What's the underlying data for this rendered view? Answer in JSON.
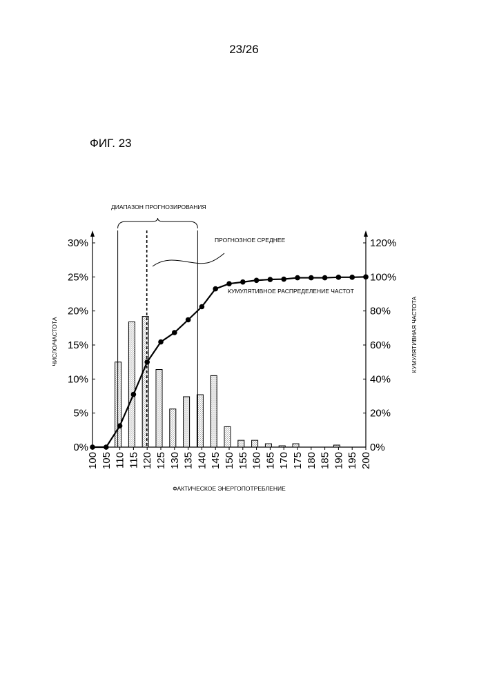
{
  "page": {
    "number": "23/26",
    "figure": "ФИГ. 23"
  },
  "chart_data": {
    "type": "bar",
    "categories": [
      "100",
      "105",
      "110",
      "115",
      "120",
      "125",
      "130",
      "135",
      "140",
      "145",
      "150",
      "155",
      "160",
      "165",
      "170",
      "175",
      "180",
      "185",
      "190",
      "195",
      "200"
    ],
    "series": [
      {
        "values": [
          0,
          0,
          12.5,
          18.4,
          19.2,
          11.4,
          5.6,
          7.4,
          7.7,
          10.5,
          3.0,
          1.0,
          1.0,
          0.5,
          0.2,
          0.5,
          0,
          0,
          0.3,
          0,
          0
        ]
      },
      {
        "name": "КУМУЛЯТИВНОЕ РАСПРЕДЕЛЕНИЕ ЧАСТОТ",
        "values": [
          0,
          0,
          12.5,
          31,
          50,
          61.8,
          67.3,
          74.8,
          82.5,
          93,
          96,
          97,
          98,
          98.5,
          98.7,
          99.5,
          99.5,
          99.5,
          99.8,
          99.8,
          100
        ]
      }
    ],
    "series_types": [
      "bar",
      "line"
    ],
    "xlabel": "ФАКТИЧЕСКОЕ ЭНЕРГОПОТРЕБЛЕНИЕ",
    "ylabel": "ЧИСЛО/ЧАСТОТА",
    "y2label": "КУМУЛЯТИВНАЯ ЧАСТОТА",
    "ylim": [
      0,
      30
    ],
    "y2lim": [
      0,
      120
    ],
    "yticks": [
      "0%",
      "5%",
      "10%",
      "15%",
      "20%",
      "25%",
      "30%"
    ],
    "y2ticks": [
      "0%",
      "20%",
      "40%",
      "60%",
      "80%",
      "100%",
      "120%"
    ],
    "annotations": {
      "range": "ДИАПАЗОН ПРОГНОЗИРОВАНИЯ",
      "mean": "ПРОГНОЗНОЕ СРЕДНЕЕ",
      "cumulative": "КУМУЛЯТИВНОЕ РАСПРЕДЕЛЕНИЕ ЧАСТОТ"
    },
    "forecast_range": [
      110,
      140
    ],
    "forecast_mean": 120,
    "grid": false
  }
}
